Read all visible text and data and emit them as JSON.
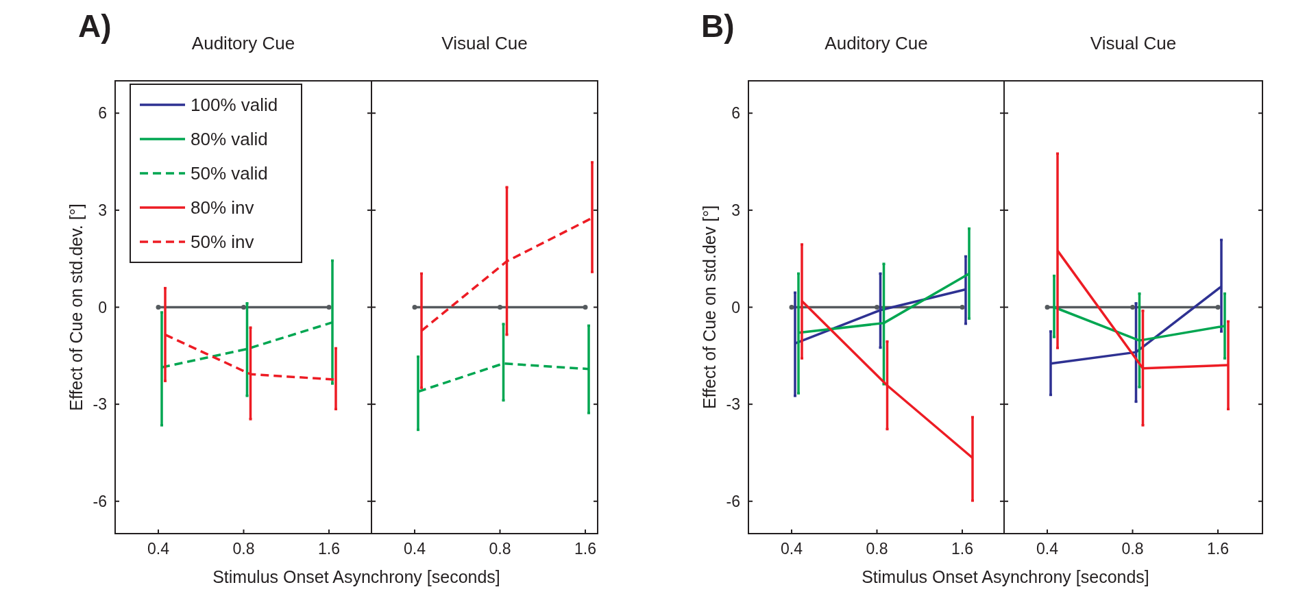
{
  "chart_data": [
    {
      "type": "line",
      "title": "Auditory Cue",
      "xlabel": "Stimulus Onset Asynchrony [seconds]",
      "ylabel": "Effect of Cue on std.dev. [°]",
      "annotations": [
        "A)"
      ],
      "categories": [
        "0.4",
        "0.8",
        "1.6"
      ],
      "ylim": [
        -7,
        7
      ],
      "yticks": [
        -6,
        -3,
        0,
        3,
        6
      ],
      "legend": "top left",
      "marker": "none",
      "series": [
        {
          "color": "#555a5e",
          "marker": "circle",
          "line_style": "solid",
          "values": [
            0,
            0,
            0
          ]
        },
        {
          "name": "100% valid",
          "color": "#2e3192",
          "line_style": "solid",
          "values": [
            null,
            null,
            null
          ]
        },
        {
          "name": "80% valid",
          "color": "#00a651",
          "line_style": "solid",
          "values": [
            null,
            null,
            null
          ]
        },
        {
          "name": "50% valid",
          "color": "#00a651",
          "line_style": "dashed",
          "values": [
            -1.86,
            -1.29,
            -0.47
          ],
          "errors": [
            [
              -3.65,
              -0.16
            ],
            [
              -2.74,
              0.12
            ],
            [
              -2.36,
              1.44
            ]
          ]
        },
        {
          "name": "80% inv",
          "color": "#ed1c24",
          "line_style": "solid",
          "values": [
            null,
            null,
            null
          ]
        },
        {
          "name": "50% inv",
          "color": "#ed1c24",
          "line_style": "dashed",
          "values": [
            -0.85,
            -2.07,
            -2.24
          ],
          "errors": [
            [
              -2.28,
              0.59
            ],
            [
              -3.46,
              -0.63
            ],
            [
              -3.15,
              -1.27
            ]
          ]
        }
      ]
    },
    {
      "type": "line",
      "title": "Visual Cue",
      "categories": [
        "0.4",
        "0.8",
        "1.6"
      ],
      "ylim": [
        -7,
        7
      ],
      "yticks": [
        -6,
        -3,
        0,
        3,
        6
      ],
      "tick_labels": "x",
      "marker": "none",
      "series": [
        {
          "color": "#555a5e",
          "marker": "circle",
          "line_style": "solid",
          "values": [
            0,
            0,
            0
          ]
        },
        {
          "color": "#00a651",
          "line_style": "dashed",
          "values": [
            -2.61,
            -1.74,
            -1.91
          ],
          "errors": [
            [
              -3.79,
              -1.53
            ],
            [
              -2.88,
              -0.52
            ],
            [
              -3.27,
              -0.57
            ]
          ]
        },
        {
          "color": "#ed1c24",
          "line_style": "dashed",
          "values": [
            -0.73,
            1.42,
            2.76
          ],
          "errors": [
            [
              -2.49,
              1.04
            ],
            [
              -0.85,
              3.71
            ],
            [
              1.09,
              4.48
            ]
          ]
        }
      ]
    },
    {
      "type": "line",
      "title": "Auditory Cue",
      "xlabel": "Stimulus Onset Asynchrony [seconds]",
      "ylabel": "Effect of Cue on std.dev [°]",
      "annotations": [
        "B)"
      ],
      "categories": [
        "0.4",
        "0.8",
        "1.6"
      ],
      "ylim": [
        -7,
        7
      ],
      "yticks": [
        -6,
        -3,
        0,
        3,
        6
      ],
      "marker": "none",
      "series": [
        {
          "color": "#555a5e",
          "marker": "circle",
          "line_style": "solid",
          "values": [
            0,
            0,
            0
          ]
        },
        {
          "color": "#2e3192",
          "line_style": "solid",
          "values": [
            -1.12,
            -0.09,
            0.55
          ],
          "errors": [
            [
              -2.74,
              0.45
            ],
            [
              -1.25,
              1.04
            ],
            [
              -0.51,
              1.57
            ]
          ]
        },
        {
          "color": "#00a651",
          "line_style": "solid",
          "values": [
            -0.79,
            -0.49,
            1.04
          ],
          "errors": [
            [
              -2.66,
              1.04
            ],
            [
              -2.38,
              1.34
            ],
            [
              -0.35,
              2.43
            ]
          ]
        },
        {
          "color": "#ed1c24",
          "line_style": "solid",
          "values": [
            0.19,
            -2.42,
            -4.66
          ],
          "errors": [
            [
              -1.58,
              1.94
            ],
            [
              -3.77,
              -1.06
            ],
            [
              -5.98,
              -3.4
            ]
          ]
        }
      ]
    },
    {
      "type": "line",
      "title": "Visual Cue",
      "categories": [
        "0.4",
        "0.8",
        "1.6"
      ],
      "ylim": [
        -7,
        7
      ],
      "yticks": [
        -6,
        -3,
        0,
        3,
        6
      ],
      "tick_labels": "x",
      "marker": "none",
      "series": [
        {
          "color": "#555a5e",
          "marker": "circle",
          "line_style": "solid",
          "values": [
            0,
            0,
            0
          ]
        },
        {
          "color": "#2e3192",
          "line_style": "solid",
          "values": [
            -1.74,
            -1.39,
            0.64
          ],
          "errors": [
            [
              -2.71,
              -0.75
            ],
            [
              -2.92,
              0.12
            ],
            [
              -0.75,
              2.08
            ]
          ]
        },
        {
          "color": "#00a651",
          "line_style": "solid",
          "values": [
            0,
            -1.03,
            -0.58
          ],
          "errors": [
            [
              -0.92,
              0.97
            ],
            [
              -2.47,
              0.42
            ],
            [
              -1.58,
              0.42
            ]
          ]
        },
        {
          "color": "#ed1c24",
          "line_style": "solid",
          "values": [
            1.75,
            -1.89,
            -1.79
          ],
          "errors": [
            [
              -1.26,
              4.75
            ],
            [
              -3.65,
              -0.11
            ],
            [
              -3.15,
              -0.44
            ]
          ]
        }
      ]
    }
  ]
}
